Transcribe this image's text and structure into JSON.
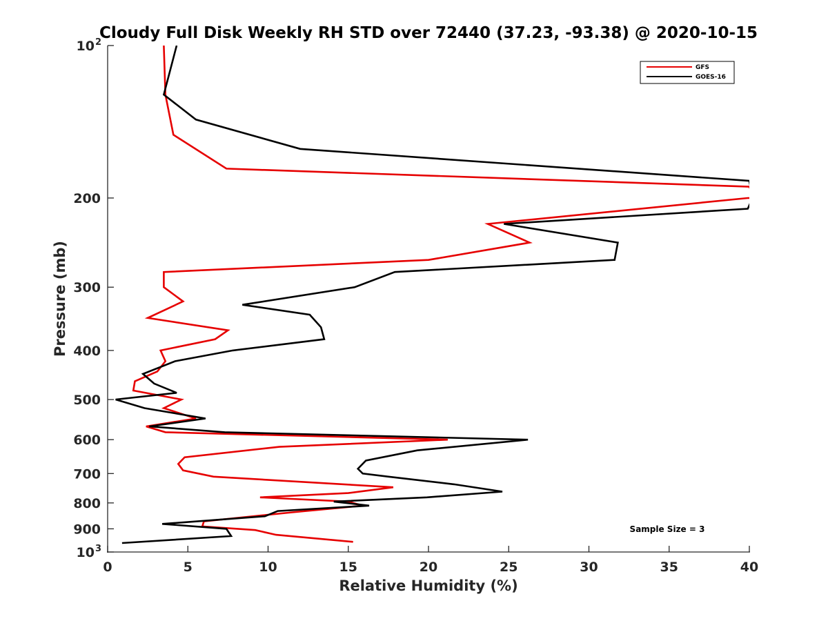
{
  "chart_data": {
    "type": "line",
    "title": "Cloudy Full Disk Weekly RH STD over 72440 (37.23, -93.38) @ 2020-10-15",
    "xlabel": "Relative Humidity (%)",
    "ylabel": "Pressure (mb)",
    "xlim": [
      0,
      40
    ],
    "ylim": [
      100,
      1000
    ],
    "yscale": "log",
    "y_reversed": true,
    "grid": false,
    "legend_position": "top-right",
    "x_ticks": [
      0,
      5,
      10,
      15,
      20,
      25,
      30,
      35,
      40
    ],
    "y_ticks": [
      {
        "value": 100,
        "label": "10",
        "exp": "2"
      },
      {
        "value": 200,
        "label": "200",
        "exp": ""
      },
      {
        "value": 300,
        "label": "300",
        "exp": ""
      },
      {
        "value": 400,
        "label": "400",
        "exp": ""
      },
      {
        "value": 500,
        "label": "500",
        "exp": ""
      },
      {
        "value": 600,
        "label": "600",
        "exp": ""
      },
      {
        "value": 700,
        "label": "700",
        "exp": ""
      },
      {
        "value": 800,
        "label": "800",
        "exp": ""
      },
      {
        "value": 900,
        "label": "900",
        "exp": ""
      },
      {
        "value": 1000,
        "label": "10",
        "exp": "3"
      }
    ],
    "annotation": "Sample Size = 3",
    "series": [
      {
        "name": "GFS",
        "color": "#e60000",
        "points": [
          [
            3.5,
            100
          ],
          [
            3.6,
            125
          ],
          [
            4.1,
            150
          ],
          [
            7.4,
            175
          ],
          [
            40,
            190
          ],
          [
            40.3,
            200
          ],
          [
            39.9,
            200
          ],
          [
            23.7,
            225
          ],
          [
            26.3,
            245
          ],
          [
            20.0,
            265
          ],
          [
            3.5,
            280
          ],
          [
            3.5,
            300
          ],
          [
            4.7,
            320
          ],
          [
            2.5,
            345
          ],
          [
            7.5,
            365
          ],
          [
            6.7,
            380
          ],
          [
            3.3,
            400
          ],
          [
            3.6,
            420
          ],
          [
            3.1,
            440
          ],
          [
            1.7,
            460
          ],
          [
            1.6,
            480
          ],
          [
            4.6,
            500
          ],
          [
            3.5,
            520
          ],
          [
            5.5,
            545
          ],
          [
            2.4,
            565
          ],
          [
            3.6,
            580
          ],
          [
            21.2,
            600
          ],
          [
            10.7,
            620
          ],
          [
            4.8,
            650
          ],
          [
            4.4,
            670
          ],
          [
            4.7,
            690
          ],
          [
            6.6,
            710
          ],
          [
            17.8,
            745
          ],
          [
            15.0,
            765
          ],
          [
            9.5,
            780
          ],
          [
            15.0,
            795
          ],
          [
            15.9,
            810
          ],
          [
            11.5,
            835
          ],
          [
            6.0,
            870
          ],
          [
            5.9,
            890
          ],
          [
            9.2,
            905
          ],
          [
            10.5,
            925
          ],
          [
            15.3,
            955
          ]
        ]
      },
      {
        "name": "GOES-16",
        "color": "#000000",
        "points": [
          [
            4.3,
            100
          ],
          [
            3.5,
            125
          ],
          [
            5.5,
            140
          ],
          [
            12.0,
            160
          ],
          [
            40,
            185
          ],
          [
            40.2,
            200
          ],
          [
            39.9,
            210
          ],
          [
            24.7,
            225
          ],
          [
            31.8,
            245
          ],
          [
            31.6,
            265
          ],
          [
            17.9,
            280
          ],
          [
            15.4,
            300
          ],
          [
            8.4,
            325
          ],
          [
            12.6,
            340
          ],
          [
            13.3,
            360
          ],
          [
            13.5,
            380
          ],
          [
            7.8,
            400
          ],
          [
            4.2,
            420
          ],
          [
            2.2,
            445
          ],
          [
            2.9,
            465
          ],
          [
            4.3,
            485
          ],
          [
            0.5,
            500
          ],
          [
            2.3,
            520
          ],
          [
            6.1,
            545
          ],
          [
            2.6,
            565
          ],
          [
            7.3,
            580
          ],
          [
            26.2,
            600
          ],
          [
            19.3,
            630
          ],
          [
            16.1,
            660
          ],
          [
            15.6,
            685
          ],
          [
            15.9,
            700
          ],
          [
            17.5,
            710
          ],
          [
            21.6,
            735
          ],
          [
            24.6,
            760
          ],
          [
            19.9,
            780
          ],
          [
            14.1,
            795
          ],
          [
            16.3,
            810
          ],
          [
            10.6,
            830
          ],
          [
            9.8,
            850
          ],
          [
            3.4,
            880
          ],
          [
            7.4,
            900
          ],
          [
            7.7,
            930
          ],
          [
            0.9,
            960
          ]
        ]
      }
    ]
  }
}
